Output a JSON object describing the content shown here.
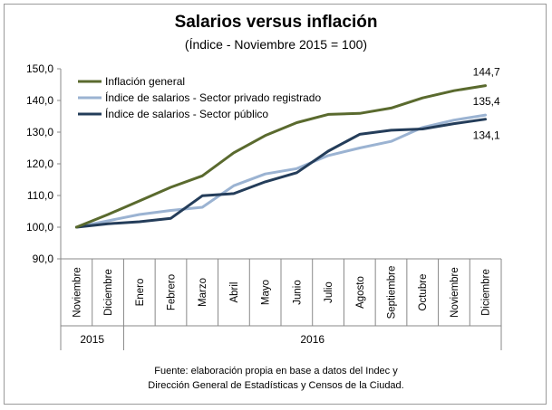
{
  "title": "Salarios versus inflación",
  "subtitle": "(Índice - Noviembre 2015 = 100)",
  "source": [
    "Fuente: elaboración propia en base a datos del Indec y",
    "Dirección General de Estadísticas y Censos de la Ciudad."
  ],
  "chart_data": {
    "type": "line",
    "title": "Salarios versus inflación",
    "subtitle": "(Índice - Noviembre 2015 = 100)",
    "categories": [
      "Noviembre",
      "Diciembre",
      "Enero",
      "Febrero",
      "Marzo",
      "Abril",
      "Mayo",
      "Junio",
      "Julio",
      "Agosto",
      "Septiembre",
      "Octubre",
      "Noviembre",
      "Diciembre"
    ],
    "year_groups": [
      {
        "label": "2015",
        "count": 2
      },
      {
        "label": "2016",
        "count": 12
      }
    ],
    "ylim": [
      90,
      150
    ],
    "yticks": [
      90,
      100,
      110,
      120,
      130,
      140,
      150
    ],
    "ytick_labels": [
      "90,0",
      "100,0",
      "110,0",
      "120,0",
      "130,0",
      "140,0",
      "150,0"
    ],
    "grid": false,
    "legend_position": "top-left",
    "series": [
      {
        "name": "Inflación general",
        "color": "#5a6a2e",
        "values": [
          100,
          104.0,
          108.3,
          112.6,
          116.2,
          123.5,
          128.9,
          133.0,
          135.6,
          135.9,
          137.6,
          140.8,
          143.1,
          144.7
        ]
      },
      {
        "name": "Índice de salarios - Sector privado registrado",
        "color": "#9bb3d2",
        "values": [
          100,
          102.0,
          104.0,
          105.3,
          106.3,
          113.1,
          116.8,
          118.5,
          122.6,
          125.0,
          127.1,
          131.5,
          133.8,
          135.4
        ]
      },
      {
        "name": "Índice de salarios - Sector público",
        "color": "#243d5a",
        "values": [
          100,
          101.1,
          101.7,
          102.8,
          109.9,
          110.6,
          114.3,
          117.2,
          124.0,
          129.3,
          130.6,
          131.0,
          132.7,
          134.1
        ]
      }
    ],
    "end_labels": [
      "144,7",
      "135,4",
      "134,1"
    ]
  }
}
